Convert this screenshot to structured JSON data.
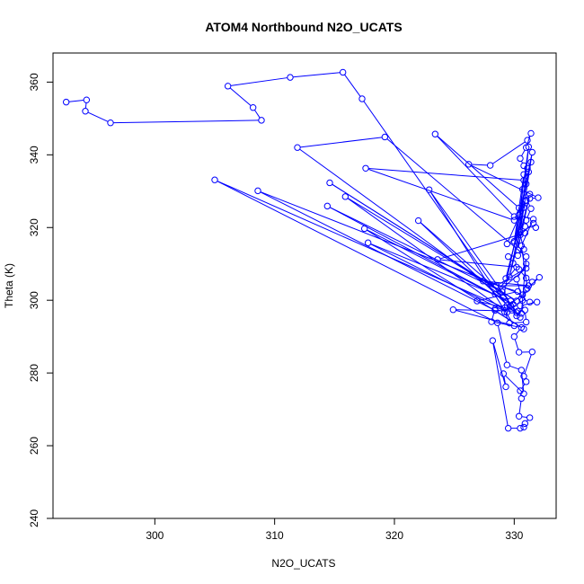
{
  "chart_data": {
    "type": "line",
    "title": "ATOM4 Northbound N2O_UCATS",
    "xlabel": "N2O_UCATS",
    "ylabel": "Theta (K)",
    "xlim": [
      291.5,
      333.5
    ],
    "ylim": [
      240,
      368
    ],
    "xticks": [
      300,
      310,
      320,
      330
    ],
    "yticks": [
      240,
      260,
      280,
      300,
      320,
      340,
      360
    ],
    "grid": false,
    "series_color": "#0000ff",
    "series": [
      {
        "markers": "open-circle",
        "points": [
          [
            292.6,
            354.5
          ],
          [
            294.3,
            355.1
          ],
          [
            294.2,
            352.0
          ],
          [
            296.3,
            348.8
          ],
          [
            308.9,
            349.5
          ],
          [
            308.2,
            353.0
          ],
          [
            306.1,
            358.9
          ],
          [
            311.3,
            361.3
          ],
          [
            315.7,
            362.7
          ],
          [
            317.3,
            355.4
          ],
          [
            329.4,
            298.6
          ],
          [
            329.8,
            297.3
          ],
          [
            330.2,
            295.7
          ],
          [
            330.6,
            296.4
          ],
          [
            331.0,
            312.0
          ],
          [
            319.2,
            344.9
          ],
          [
            311.9,
            342.0
          ],
          [
            329.1,
            300.8
          ],
          [
            331.4,
            338.0
          ],
          [
            331.1,
            336.3
          ],
          [
            330.8,
            333.0
          ],
          [
            317.6,
            336.3
          ],
          [
            330.0,
            322.0
          ],
          [
            330.4,
            325.4
          ],
          [
            323.4,
            345.7
          ],
          [
            330.0,
            323.0
          ],
          [
            331.0,
            327.4
          ],
          [
            331.3,
            328.0
          ],
          [
            332.0,
            328.2
          ],
          [
            326.2,
            337.4
          ],
          [
            328.0,
            337.1
          ],
          [
            331.1,
            344.0
          ],
          [
            331.4,
            345.9
          ],
          [
            331.0,
            342.0
          ],
          [
            330.5,
            339.0
          ],
          [
            330.8,
            337.0
          ],
          [
            331.2,
            335.3
          ],
          [
            331.0,
            332.0
          ],
          [
            330.7,
            330.5
          ],
          [
            331.4,
            325.2
          ],
          [
            331.0,
            322.0
          ],
          [
            330.9,
            320.3
          ],
          [
            331.8,
            320.0
          ],
          [
            331.6,
            321.2
          ],
          [
            330.5,
            318.0
          ],
          [
            330.8,
            314.0
          ],
          [
            330.3,
            312.3
          ],
          [
            329.5,
            312.0
          ],
          [
            329.9,
            310.2
          ],
          [
            330.4,
            308.5
          ],
          [
            331.0,
            306.1
          ],
          [
            331.5,
            305.0
          ],
          [
            332.1,
            306.3
          ],
          [
            331.0,
            303.0
          ],
          [
            330.6,
            300.5
          ],
          [
            331.3,
            299.5
          ],
          [
            331.9,
            299.5
          ],
          [
            330.5,
            298.5
          ],
          [
            329.7,
            298.5
          ],
          [
            330.2,
            296.6
          ],
          [
            330.9,
            297.3
          ],
          [
            331.0,
            294.0
          ],
          [
            329.6,
            293.7
          ],
          [
            329.2,
            296.8
          ],
          [
            328.4,
            297.6
          ],
          [
            328.1,
            294.1
          ],
          [
            330.6,
            292.5
          ],
          [
            330.0,
            290.0
          ],
          [
            330.4,
            285.7
          ],
          [
            331.5,
            285.8
          ],
          [
            330.8,
            279.1
          ],
          [
            331.0,
            277.6
          ],
          [
            330.5,
            275.1
          ],
          [
            330.6,
            273.0
          ],
          [
            330.4,
            268.1
          ],
          [
            331.3,
            267.7
          ],
          [
            330.9,
            266.1
          ],
          [
            330.8,
            265.1
          ],
          [
            330.5,
            264.8
          ],
          [
            329.5,
            264.8
          ],
          [
            328.2,
            288.9
          ],
          [
            329.3,
            276.2
          ],
          [
            329.1,
            279.8
          ],
          [
            330.8,
            274.3
          ],
          [
            330.6,
            280.8
          ],
          [
            329.4,
            282.2
          ],
          [
            328.6,
            293.8
          ],
          [
            305.0,
            333.1
          ],
          [
            329.2,
            297.9
          ],
          [
            330.7,
            301.5
          ],
          [
            308.6,
            330.1
          ],
          [
            328.4,
            297.2
          ],
          [
            330.8,
            292.1
          ],
          [
            317.5,
            319.7
          ],
          [
            329.9,
            298.9
          ],
          [
            314.4,
            325.9
          ],
          [
            329.0,
            302.3
          ],
          [
            314.6,
            332.3
          ],
          [
            330.2,
            299.8
          ],
          [
            315.9,
            328.5
          ],
          [
            329.4,
            296.7
          ],
          [
            317.8,
            315.8
          ],
          [
            329.7,
            299.8
          ],
          [
            322.0,
            321.9
          ],
          [
            330.5,
            295.3
          ],
          [
            322.9,
            330.4
          ],
          [
            330.0,
            293.0
          ],
          [
            324.9,
            297.4
          ],
          [
            330.3,
            297.0
          ],
          [
            326.9,
            299.8
          ],
          [
            330.3,
            302.4
          ],
          [
            327.4,
            305.3
          ],
          [
            331.2,
            304.0
          ],
          [
            328.5,
            304.0
          ],
          [
            331.0,
            308.8
          ],
          [
            328.4,
            301.7
          ],
          [
            330.2,
            309.1
          ],
          [
            323.6,
            311.2
          ],
          [
            330.9,
            318.5
          ],
          [
            329.4,
            315.5
          ],
          [
            331.0,
            327.5
          ],
          [
            329.3,
            306.0
          ],
          [
            330.8,
            325.5
          ],
          [
            329.6,
            306.4
          ],
          [
            331.3,
            329.2
          ],
          [
            330.3,
            313.8
          ],
          [
            330.8,
            334.6
          ],
          [
            330.0,
            316.2
          ],
          [
            331.5,
            340.7
          ],
          [
            330.5,
            318.7
          ],
          [
            331.2,
            342.2
          ],
          [
            330.4,
            323.4
          ],
          [
            331.6,
            322.3
          ],
          [
            330.6,
            315.0
          ],
          [
            331.1,
            303.3
          ],
          [
            330.7,
            300.0
          ],
          [
            330.2,
            305.8
          ],
          [
            331.0,
            310.0
          ]
        ]
      }
    ]
  }
}
